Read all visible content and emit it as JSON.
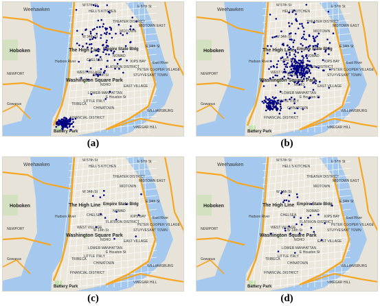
{
  "panels": [
    {
      "id": "a",
      "caption": "(a)",
      "density": "downtown",
      "count": 260
    },
    {
      "id": "b",
      "caption": "(b)",
      "density": "midtown",
      "count": 420
    },
    {
      "id": "c",
      "caption": "(c)",
      "density": "sparse",
      "count": 14
    },
    {
      "id": "d",
      "caption": "(d)",
      "density": "sparse",
      "count": 30
    }
  ],
  "map_labels": {
    "weehawken": "Weehawken",
    "hells_kitchen": "HELL'S KITCHEN",
    "theater_district": "THEATER DISTRICT",
    "midtown_east": "MIDTOWN EAST",
    "midtown": "MIDTOWN",
    "hoboken": "Hoboken",
    "high_line": "The High Line",
    "empire_state": "Empire State Bldg",
    "nomad": "NOMAD",
    "kips_bay": "KIPS BAY",
    "chelsea": "CHELSEA",
    "flatiron": "FLATIRON DISTRICT",
    "stuyvesant": "STUYVESANT TOWN",
    "peter_cooper": "PETER COOPER VILLAGE",
    "west_village": "WEST VILLAGE",
    "east_village": "EAST VILLAGE",
    "washington_sq": "Washington Square Park",
    "noho": "NOHO",
    "lower_manhattan": "LOWER MANHATTAN",
    "tribeca": "TRIBECA",
    "little_italy": "LITTLE ITALY",
    "chinatown": "CHINATOWN",
    "financial": "FINANCIAL DISTRICT",
    "battery_park": "Battery Park",
    "williamsburg": "WILLIAMSBURG",
    "vinegar_hill": "VINEGAR HILL",
    "newport": "NEWPORT",
    "hudson_river": "Hudson River",
    "east_river": "East River",
    "w_57": "W 57th St",
    "e_57": "E 57th St",
    "w_34": "W 34th St",
    "e_34": "E 34th St",
    "w_14": "W 14th St",
    "houston": "E Houston St",
    "gowanus": "Gowanus"
  },
  "colors": {
    "water": "#a4c8ee",
    "land": "#e7e3d8",
    "park": "#c8e0b0",
    "highway": "#f5a623",
    "road": "#ffffff",
    "point": "#000080"
  }
}
